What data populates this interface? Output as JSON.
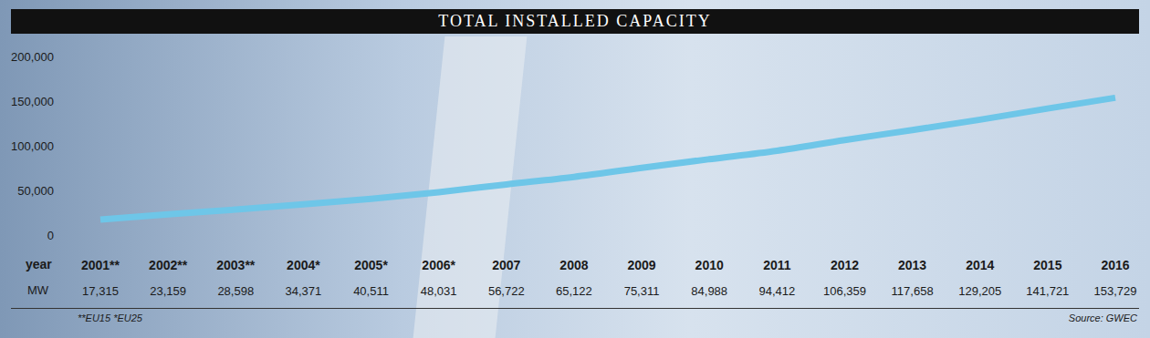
{
  "chart_data": {
    "type": "line",
    "title": "TOTAL INSTALLED CAPACITY",
    "x_label": "year",
    "y_label": "MW",
    "categories": [
      "2001**",
      "2002**",
      "2003**",
      "2004*",
      "2005*",
      "2006*",
      "2007",
      "2008",
      "2009",
      "2010",
      "2011",
      "2012",
      "2013",
      "2014",
      "2015",
      "2016"
    ],
    "values": [
      17315,
      23159,
      28598,
      34371,
      40511,
      48031,
      56722,
      65122,
      75311,
      84988,
      94412,
      106359,
      117658,
      129205,
      141721,
      153729
    ],
    "value_labels": [
      "17,315",
      "23,159",
      "28,598",
      "34,371",
      "40,511",
      "48,031",
      "56,722",
      "65,122",
      "75,311",
      "84,988",
      "94,412",
      "106,359",
      "117,658",
      "129,205",
      "141,721",
      "153,729"
    ],
    "data_labels": true,
    "color": "#6ec6e8",
    "ylim": [
      0,
      200000
    ],
    "yticks": [
      0,
      {
        "value": 50000,
        "label": "50,000"
      },
      {
        "value": 100000,
        "label": "100,000"
      },
      {
        "value": 150000,
        "label": "150,000"
      },
      {
        "value": 200000,
        "label": "200,000"
      }
    ],
    "grid": false,
    "notes": [
      "**EU15 *EU25"
    ],
    "source": "Source: GWEC"
  }
}
